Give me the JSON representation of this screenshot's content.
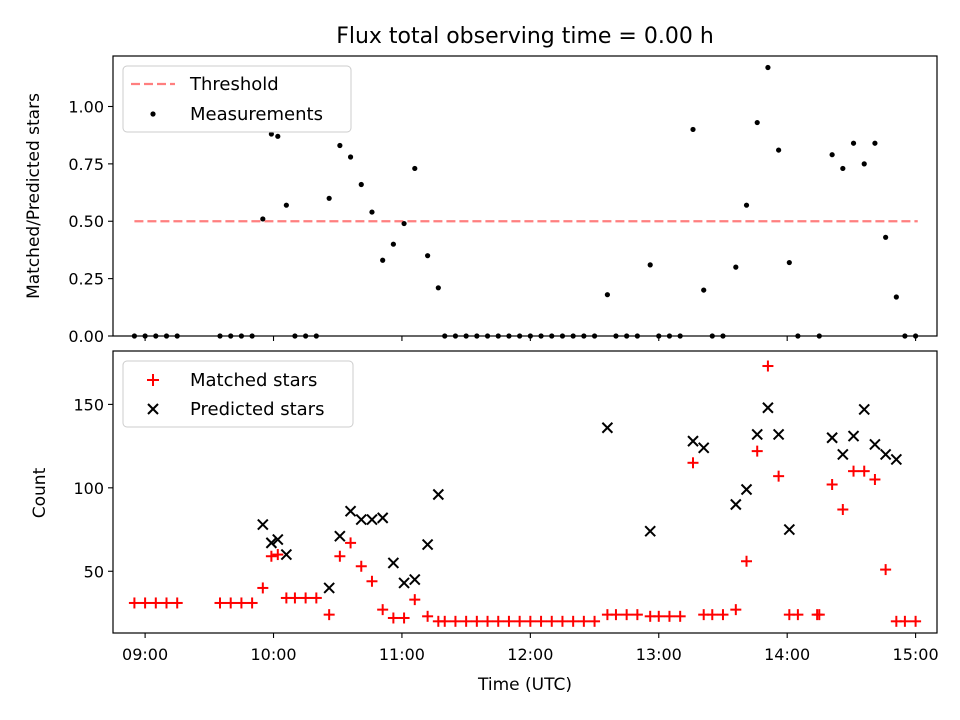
{
  "chart_data": [
    {
      "type": "scatter",
      "title": "Flux total observing time = 0.00 h",
      "xlabel": "",
      "ylabel": "Matched/Predicted stars",
      "xlim": [
        "08:45",
        "15:10"
      ],
      "ylim": [
        0,
        1.22
      ],
      "yticks": [
        0,
        0.25,
        0.5,
        0.75,
        1.0
      ],
      "ytick_labels": [
        "0.00",
        "0.25",
        "0.50",
        "0.75",
        "1.00"
      ],
      "legend": {
        "placement": "top-left",
        "entries": [
          "Threshold",
          "Measurements"
        ]
      },
      "threshold": {
        "name": "Threshold",
        "y": 0.5,
        "x_range": [
          "08:55",
          "15:01"
        ],
        "color": "#ff7f7f",
        "style": "dashed"
      },
      "series": [
        {
          "name": "Measurements",
          "color": "#000000",
          "marker": "dot",
          "points": [
            [
              "08:55",
              0
            ],
            [
              "09:00",
              0
            ],
            [
              "09:05",
              0
            ],
            [
              "09:10",
              0
            ],
            [
              "09:15",
              0
            ],
            [
              "09:35",
              0
            ],
            [
              "09:40",
              0
            ],
            [
              "09:45",
              0
            ],
            [
              "09:50",
              0
            ],
            [
              "09:55",
              0.51
            ],
            [
              "09:59",
              0.88
            ],
            [
              "10:02",
              0.87
            ],
            [
              "10:06",
              0.57
            ],
            [
              "10:10",
              0
            ],
            [
              "10:15",
              0
            ],
            [
              "10:20",
              0
            ],
            [
              "10:26",
              0.6
            ],
            [
              "10:31",
              0.83
            ],
            [
              "10:36",
              0.78
            ],
            [
              "10:41",
              0.66
            ],
            [
              "10:46",
              0.54
            ],
            [
              "10:51",
              0.33
            ],
            [
              "10:56",
              0.4
            ],
            [
              "11:01",
              0.49
            ],
            [
              "11:06",
              0.73
            ],
            [
              "11:12",
              0.35
            ],
            [
              "11:17",
              0.21
            ],
            [
              "11:20",
              0
            ],
            [
              "11:25",
              0
            ],
            [
              "11:30",
              0
            ],
            [
              "11:35",
              0
            ],
            [
              "11:40",
              0
            ],
            [
              "11:45",
              0
            ],
            [
              "11:50",
              0
            ],
            [
              "11:55",
              0
            ],
            [
              "12:00",
              0
            ],
            [
              "12:05",
              0
            ],
            [
              "12:10",
              0
            ],
            [
              "12:15",
              0
            ],
            [
              "12:20",
              0
            ],
            [
              "12:25",
              0
            ],
            [
              "12:30",
              0
            ],
            [
              "12:36",
              0.18
            ],
            [
              "12:40",
              0
            ],
            [
              "12:45",
              0
            ],
            [
              "12:50",
              0
            ],
            [
              "12:56",
              0.31
            ],
            [
              "13:00",
              0
            ],
            [
              "13:05",
              0
            ],
            [
              "13:10",
              0
            ],
            [
              "13:16",
              0.9
            ],
            [
              "13:21",
              0.2
            ],
            [
              "13:25",
              0
            ],
            [
              "13:30",
              0
            ],
            [
              "13:36",
              0.3
            ],
            [
              "13:41",
              0.57
            ],
            [
              "13:46",
              0.93
            ],
            [
              "13:51",
              1.17
            ],
            [
              "13:56",
              0.81
            ],
            [
              "14:01",
              0.32
            ],
            [
              "14:05",
              0
            ],
            [
              "14:15",
              0
            ],
            [
              "14:21",
              0.79
            ],
            [
              "14:26",
              0.73
            ],
            [
              "14:31",
              0.84
            ],
            [
              "14:36",
              0.75
            ],
            [
              "14:41",
              0.84
            ],
            [
              "14:46",
              0.43
            ],
            [
              "14:51",
              0.17
            ],
            [
              "14:55",
              0
            ],
            [
              "15:00",
              0
            ]
          ]
        }
      ]
    },
    {
      "type": "scatter",
      "title": "",
      "xlabel": "Time (UTC)",
      "ylabel": "Count",
      "xlim": [
        "08:45",
        "15:10"
      ],
      "ylim": [
        13,
        182
      ],
      "yticks": [
        50,
        100,
        150
      ],
      "xticks": [
        "09:00",
        "10:00",
        "11:00",
        "12:00",
        "13:00",
        "14:00",
        "15:00"
      ],
      "legend": {
        "placement": "top-left",
        "entries": [
          "Matched stars",
          "Predicted stars"
        ]
      },
      "series": [
        {
          "name": "Matched stars",
          "color": "#ff0000",
          "marker": "plus",
          "points": [
            [
              "08:55",
              31
            ],
            [
              "09:00",
              31
            ],
            [
              "09:05",
              31
            ],
            [
              "09:10",
              31
            ],
            [
              "09:15",
              31
            ],
            [
              "09:35",
              31
            ],
            [
              "09:40",
              31
            ],
            [
              "09:45",
              31
            ],
            [
              "09:50",
              31
            ],
            [
              "09:55",
              40
            ],
            [
              "09:59",
              59
            ],
            [
              "10:02",
              60
            ],
            [
              "10:06",
              34
            ],
            [
              "10:10",
              34
            ],
            [
              "10:15",
              34
            ],
            [
              "10:20",
              34
            ],
            [
              "10:26",
              24
            ],
            [
              "10:31",
              59
            ],
            [
              "10:36",
              67
            ],
            [
              "10:41",
              53
            ],
            [
              "10:46",
              44
            ],
            [
              "10:51",
              27
            ],
            [
              "10:56",
              22
            ],
            [
              "11:01",
              22
            ],
            [
              "11:06",
              33
            ],
            [
              "11:12",
              23
            ],
            [
              "11:17",
              20
            ],
            [
              "11:20",
              20
            ],
            [
              "11:25",
              20
            ],
            [
              "11:30",
              20
            ],
            [
              "11:35",
              20
            ],
            [
              "11:40",
              20
            ],
            [
              "11:45",
              20
            ],
            [
              "11:50",
              20
            ],
            [
              "11:55",
              20
            ],
            [
              "12:00",
              20
            ],
            [
              "12:05",
              20
            ],
            [
              "12:10",
              20
            ],
            [
              "12:15",
              20
            ],
            [
              "12:20",
              20
            ],
            [
              "12:25",
              20
            ],
            [
              "12:30",
              20
            ],
            [
              "12:36",
              24
            ],
            [
              "12:40",
              24
            ],
            [
              "12:45",
              24
            ],
            [
              "12:50",
              24
            ],
            [
              "12:56",
              23
            ],
            [
              "13:00",
              23
            ],
            [
              "13:05",
              23
            ],
            [
              "13:10",
              23
            ],
            [
              "13:16",
              115
            ],
            [
              "13:21",
              24
            ],
            [
              "13:25",
              24
            ],
            [
              "13:30",
              24
            ],
            [
              "13:36",
              27
            ],
            [
              "13:41",
              56
            ],
            [
              "13:46",
              122
            ],
            [
              "13:51",
              173
            ],
            [
              "13:56",
              107
            ],
            [
              "14:01",
              24
            ],
            [
              "14:05",
              24
            ],
            [
              "14:14",
              24
            ],
            [
              "14:15",
              24
            ],
            [
              "14:21",
              102
            ],
            [
              "14:26",
              87
            ],
            [
              "14:31",
              110
            ],
            [
              "14:36",
              110
            ],
            [
              "14:41",
              105
            ],
            [
              "14:46",
              51
            ],
            [
              "14:51",
              20
            ],
            [
              "14:55",
              20
            ],
            [
              "15:00",
              20
            ]
          ]
        },
        {
          "name": "Predicted stars",
          "color": "#000000",
          "marker": "x",
          "points": [
            [
              "09:55",
              78
            ],
            [
              "09:59",
              67
            ],
            [
              "10:02",
              69
            ],
            [
              "10:06",
              60
            ],
            [
              "10:26",
              40
            ],
            [
              "10:31",
              71
            ],
            [
              "10:36",
              86
            ],
            [
              "10:41",
              81
            ],
            [
              "10:46",
              81
            ],
            [
              "10:51",
              82
            ],
            [
              "10:56",
              55
            ],
            [
              "11:01",
              43
            ],
            [
              "11:06",
              45
            ],
            [
              "11:12",
              66
            ],
            [
              "11:17",
              96
            ],
            [
              "12:36",
              136
            ],
            [
              "12:56",
              74
            ],
            [
              "13:16",
              128
            ],
            [
              "13:21",
              124
            ],
            [
              "13:36",
              90
            ],
            [
              "13:41",
              99
            ],
            [
              "13:46",
              132
            ],
            [
              "13:51",
              148
            ],
            [
              "13:56",
              132
            ],
            [
              "14:01",
              75
            ],
            [
              "14:21",
              130
            ],
            [
              "14:26",
              120
            ],
            [
              "14:31",
              131
            ],
            [
              "14:36",
              147
            ],
            [
              "14:41",
              126
            ],
            [
              "14:46",
              120
            ],
            [
              "14:51",
              117
            ]
          ]
        }
      ]
    }
  ]
}
